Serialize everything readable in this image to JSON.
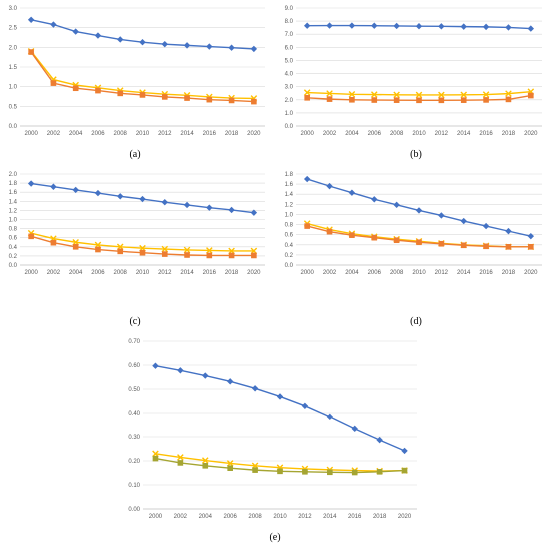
{
  "colors": {
    "blue": "#4472c4",
    "orange": "#ed7d31",
    "yellow": "#ffc000",
    "olive": "#a5a532"
  },
  "chart_data": [
    {
      "type": "line",
      "panel_label": "(a)",
      "x": [
        "2000",
        "2002",
        "2004",
        "2006",
        "2008",
        "2010",
        "2012",
        "2014",
        "2016",
        "2018",
        "2020"
      ],
      "ylim": [
        0,
        3.0
      ],
      "yticks": [
        "0.0",
        "0.5",
        "1.0",
        "1.5",
        "2.0",
        "2.5",
        "3.0"
      ],
      "ytick_values": [
        0,
        0.5,
        1.0,
        1.5,
        2.0,
        2.5,
        3.0
      ],
      "grid": true,
      "series": [
        {
          "color": "#4472c4",
          "marker": "diamond",
          "values": [
            2.7,
            2.58,
            2.4,
            2.3,
            2.2,
            2.13,
            2.08,
            2.05,
            2.02,
            1.99,
            1.96
          ]
        },
        {
          "color": "#ffc000",
          "marker": "x",
          "values": [
            1.9,
            1.18,
            1.04,
            0.97,
            0.9,
            0.85,
            0.81,
            0.78,
            0.74,
            0.71,
            0.7
          ]
        },
        {
          "color": "#ed7d31",
          "marker": "square",
          "values": [
            1.88,
            1.09,
            0.96,
            0.9,
            0.83,
            0.79,
            0.74,
            0.71,
            0.67,
            0.65,
            0.62
          ]
        }
      ]
    },
    {
      "type": "line",
      "panel_label": "(b)",
      "x": [
        "2000",
        "2002",
        "2004",
        "2006",
        "2008",
        "2010",
        "2012",
        "2014",
        "2016",
        "2018",
        "2020"
      ],
      "ylim": [
        0,
        9.0
      ],
      "yticks": [
        "0.0",
        "1.0",
        "2.0",
        "3.0",
        "4.0",
        "5.0",
        "6.0",
        "7.0",
        "8.0",
        "9.0"
      ],
      "ytick_values": [
        0,
        1,
        2,
        3,
        4,
        5,
        6,
        7,
        8,
        9
      ],
      "grid": true,
      "series": [
        {
          "color": "#4472c4",
          "marker": "diamond",
          "values": [
            7.65,
            7.66,
            7.66,
            7.65,
            7.63,
            7.61,
            7.6,
            7.58,
            7.56,
            7.52,
            7.43
          ]
        },
        {
          "color": "#ffc000",
          "marker": "x",
          "values": [
            2.55,
            2.48,
            2.42,
            2.4,
            2.38,
            2.37,
            2.37,
            2.38,
            2.4,
            2.47,
            2.62
          ]
        },
        {
          "color": "#ed7d31",
          "marker": "square",
          "values": [
            2.15,
            2.05,
            2.0,
            1.98,
            1.97,
            1.96,
            1.96,
            1.97,
            1.99,
            2.03,
            2.32
          ]
        }
      ]
    },
    {
      "type": "line",
      "panel_label": "(c)",
      "x": [
        "2000",
        "2002",
        "2004",
        "2006",
        "2008",
        "2010",
        "2012",
        "2014",
        "2016",
        "2018",
        "2020"
      ],
      "ylim": [
        0,
        2.0
      ],
      "yticks": [
        "0.0",
        "0.2",
        "0.4",
        "0.6",
        "0.8",
        "1.0",
        "1.2",
        "1.4",
        "1.6",
        "1.8",
        "2.0"
      ],
      "ytick_values": [
        0,
        0.2,
        0.4,
        0.6,
        0.8,
        1.0,
        1.2,
        1.4,
        1.6,
        1.8,
        2.0
      ],
      "grid": true,
      "series": [
        {
          "color": "#4472c4",
          "marker": "diamond",
          "values": [
            1.79,
            1.72,
            1.65,
            1.58,
            1.51,
            1.45,
            1.38,
            1.32,
            1.26,
            1.21,
            1.15
          ]
        },
        {
          "color": "#ffc000",
          "marker": "x",
          "values": [
            0.7,
            0.58,
            0.5,
            0.44,
            0.4,
            0.37,
            0.35,
            0.33,
            0.32,
            0.31,
            0.31
          ]
        },
        {
          "color": "#ed7d31",
          "marker": "square",
          "values": [
            0.63,
            0.49,
            0.4,
            0.34,
            0.3,
            0.27,
            0.24,
            0.22,
            0.21,
            0.21,
            0.21
          ]
        }
      ]
    },
    {
      "type": "line",
      "panel_label": "(d)",
      "x": [
        "2000",
        "2002",
        "2004",
        "2006",
        "2008",
        "2010",
        "2012",
        "2014",
        "2016",
        "2018",
        "2020"
      ],
      "ylim": [
        0,
        1.8
      ],
      "yticks": [
        "0.0",
        "0.2",
        "0.4",
        "0.6",
        "0.8",
        "1.0",
        "1.2",
        "1.4",
        "1.6",
        "1.8"
      ],
      "ytick_values": [
        0,
        0.2,
        0.4,
        0.6,
        0.8,
        1.0,
        1.2,
        1.4,
        1.6,
        1.8
      ],
      "grid": true,
      "series": [
        {
          "color": "#4472c4",
          "marker": "diamond",
          "values": [
            1.7,
            1.56,
            1.43,
            1.3,
            1.19,
            1.08,
            0.98,
            0.87,
            0.77,
            0.67,
            0.57
          ]
        },
        {
          "color": "#ffc000",
          "marker": "x",
          "values": [
            0.82,
            0.7,
            0.62,
            0.56,
            0.51,
            0.47,
            0.43,
            0.4,
            0.38,
            0.36,
            0.36
          ]
        },
        {
          "color": "#ed7d31",
          "marker": "square",
          "values": [
            0.77,
            0.66,
            0.59,
            0.54,
            0.49,
            0.45,
            0.42,
            0.39,
            0.37,
            0.36,
            0.36
          ]
        }
      ]
    },
    {
      "type": "line",
      "panel_label": "(e)",
      "x": [
        "2000",
        "2002",
        "2004",
        "2006",
        "2008",
        "2010",
        "2012",
        "2014",
        "2016",
        "2018",
        "2020"
      ],
      "ylim": [
        0,
        0.7
      ],
      "yticks": [
        "0.00",
        "0.10",
        "0.20",
        "0.30",
        "0.40",
        "0.50",
        "0.60",
        "0.70"
      ],
      "ytick_values": [
        0,
        0.1,
        0.2,
        0.3,
        0.4,
        0.5,
        0.6,
        0.7
      ],
      "grid": true,
      "series": [
        {
          "color": "#4472c4",
          "marker": "diamond",
          "values": [
            0.597,
            0.578,
            0.556,
            0.532,
            0.503,
            0.469,
            0.43,
            0.384,
            0.334,
            0.287,
            0.242
          ]
        },
        {
          "color": "#ffc000",
          "marker": "x",
          "values": [
            0.23,
            0.215,
            0.202,
            0.19,
            0.18,
            0.172,
            0.167,
            0.163,
            0.16,
            0.158,
            0.16
          ]
        },
        {
          "color": "#a5a532",
          "marker": "square",
          "values": [
            0.21,
            0.192,
            0.18,
            0.17,
            0.162,
            0.157,
            0.155,
            0.153,
            0.152,
            0.155,
            0.16
          ]
        }
      ]
    }
  ]
}
